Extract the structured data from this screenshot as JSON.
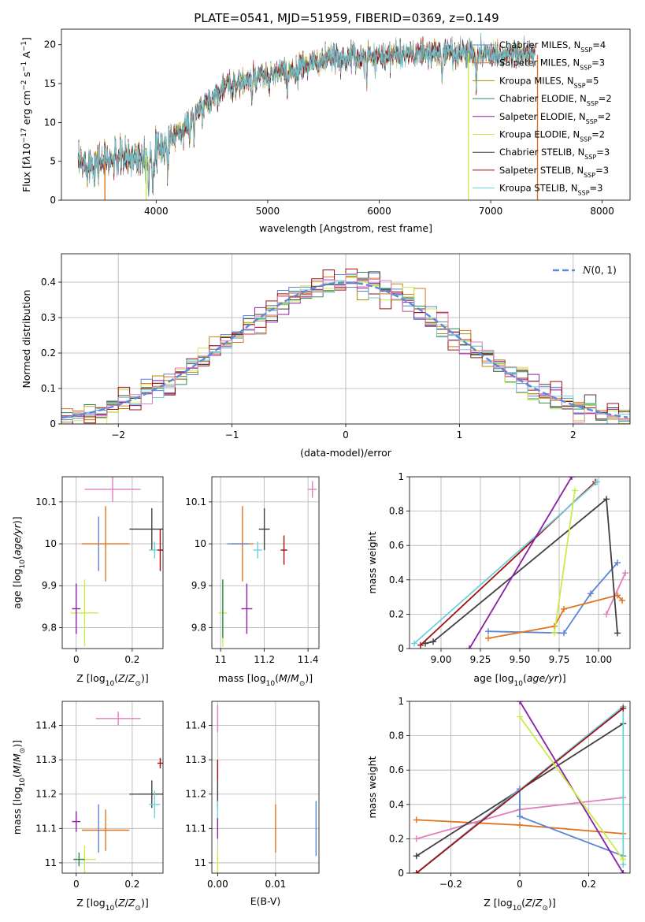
{
  "figure": {
    "title": "PLATE=0541, MJD=51959, FIBERID=0369, z=0.149"
  },
  "colors": {
    "chabrier_miles": "#5b84d4",
    "salpeter_miles": "#e07420",
    "kroupa_miles": "#b8860b",
    "chabrier_elodie": "#2e8b57",
    "salpeter_elodie": "#8b1fa6",
    "kroupa_elodie": "#c9ec4a",
    "chabrier_stelib": "#404040",
    "salpeter_stelib": "#a01010",
    "kroupa_stelib": "#6fd0dc",
    "pink": "#e27fbc"
  },
  "chart_data": [
    {
      "id": "spectrum",
      "type": "line",
      "xlabel": "wavelength [Angstrom, rest frame]",
      "ylabel": "Flux [fλ10⁻¹⁷ erg cm⁻² s⁻¹ A⁻¹]",
      "xlim": [
        3150,
        8250
      ],
      "ylim": [
        0,
        22
      ],
      "xticks": [
        4000,
        5000,
        6000,
        7000,
        8000
      ],
      "yticks": [
        0,
        5,
        10,
        15,
        20
      ],
      "spectrum_range": [
        3300,
        7400
      ],
      "legend_position": "top-right",
      "legend": [
        "Chabrier MILES, N_SSP=4",
        "Salpeter MILES, N_SSP=3",
        "Kroupa MILES, N_SSP=5",
        "Chabrier ELODIE, N_SSP=2",
        "Salpeter ELODIE, N_SSP=2",
        "Kroupa ELODIE, N_SSP=2",
        "Chabrier STELIB, N_SSP=3",
        "Salpeter STELIB, N_SSP=3",
        "Kroupa STELIB, N_SSP=3"
      ],
      "cutoffs": [
        {
          "series": "Salpeter MILES",
          "x": 3540
        },
        {
          "series": "Kroupa ELODIE",
          "x": 3910
        },
        {
          "series": "Kroupa ELODIE",
          "x": 6800
        },
        {
          "series": "Salpeter MILES",
          "x": 7420
        }
      ]
    },
    {
      "id": "residuals",
      "type": "histogram",
      "xlabel": "(data-model)/error",
      "ylabel": "Normed distribution",
      "xlim": [
        -2.5,
        2.5
      ],
      "ylim": [
        0,
        0.48
      ],
      "xticks": [
        -2,
        -1,
        0,
        1,
        2
      ],
      "yticks": [
        0.0,
        0.1,
        0.2,
        0.3,
        0.4
      ],
      "bin_width": 0.1,
      "gaussian_label": "N(0,1)",
      "legend_position": "top-right",
      "grid": true
    },
    {
      "id": "age_vs_Z",
      "type": "errorbar",
      "xlabel": "Z [log10(Z/Z⊙)]",
      "ylabel": "age  [log10(age/yr)]",
      "xlim": [
        -0.05,
        0.31
      ],
      "ylim": [
        9.75,
        10.16
      ],
      "xticks": [
        0.0,
        0.2
      ],
      "yticks": [
        9.8,
        9.9,
        10.0,
        10.1
      ],
      "points": [
        {
          "c": "pink",
          "x": 0.13,
          "xe": 0.1,
          "y": 10.13,
          "ye": 0.03
        },
        {
          "c": "chabrier_miles",
          "x": 0.08,
          "xe": 0.0,
          "y": 10.0,
          "ye": 0.065
        },
        {
          "c": "salpeter_miles",
          "x": 0.105,
          "xe": 0.085,
          "y": 10.0,
          "ye": 0.09
        },
        {
          "c": "chabrier_stelib",
          "x": 0.27,
          "xe": 0.08,
          "y": 10.035,
          "ye": 0.05
        },
        {
          "c": "kroupa_stelib",
          "x": 0.28,
          "xe": 0.02,
          "y": 9.985,
          "ye": 0.02
        },
        {
          "c": "salpeter_stelib",
          "x": 0.3,
          "xe": 0.01,
          "y": 9.985,
          "ye": 0.05
        },
        {
          "c": "kroupa_elodie",
          "x": 0.03,
          "xe": 0.05,
          "y": 9.835,
          "ye": 0.08
        },
        {
          "c": "salpeter_elodie",
          "x": 0.0,
          "xe": 0.015,
          "y": 9.845,
          "ye": 0.06
        }
      ]
    },
    {
      "id": "age_vs_mass",
      "type": "errorbar",
      "xlabel": "mass [log10(M/M⊙)]",
      "ylabel": "",
      "xlim": [
        10.96,
        11.45
      ],
      "ylim": [
        9.75,
        10.16
      ],
      "xticks": [
        11.0,
        11.2,
        11.4
      ],
      "yticks": [
        9.8,
        9.9,
        10.0,
        10.1
      ],
      "points": [
        {
          "c": "pink",
          "x": 11.42,
          "xe": 0.02,
          "y": 10.13,
          "ye": 0.02
        },
        {
          "c": "salpeter_miles",
          "x": 11.1,
          "xe": 0.05,
          "y": 10.0,
          "ye": 0.09
        },
        {
          "c": "chabrier_miles",
          "x": 11.08,
          "xe": 0.05,
          "y": 10.0,
          "ye": 0.0
        },
        {
          "c": "chabrier_stelib",
          "x": 11.2,
          "xe": 0.025,
          "y": 10.035,
          "ye": 0.05
        },
        {
          "c": "kroupa_stelib",
          "x": 11.17,
          "xe": 0.02,
          "y": 9.985,
          "ye": 0.02
        },
        {
          "c": "salpeter_stelib",
          "x": 11.29,
          "xe": 0.015,
          "y": 9.985,
          "ye": 0.035
        },
        {
          "c": "kroupa_elodie",
          "x": 11.01,
          "xe": 0.02,
          "y": 9.835,
          "ye": 0.08
        },
        {
          "c": "chabrier_elodie",
          "x": 11.01,
          "xe": 0.0,
          "y": 9.845,
          "ye": 0.07
        },
        {
          "c": "salpeter_elodie",
          "x": 11.12,
          "xe": 0.025,
          "y": 9.845,
          "ye": 0.06
        }
      ]
    },
    {
      "id": "massweight_vs_age",
      "type": "line",
      "xlabel": "age  [log10(age/yr)]",
      "ylabel": "mass weight",
      "xlim": [
        8.8,
        10.2
      ],
      "ylim": [
        0,
        1.0
      ],
      "xticks": [
        9.0,
        9.25,
        9.5,
        9.75,
        10.0
      ],
      "yticks": [
        0.0,
        0.2,
        0.4,
        0.6,
        0.8,
        1.0
      ],
      "tick_labels_x": [
        "9.00",
        "9.25",
        "9.50",
        "9.75",
        "10.00"
      ],
      "grid": true,
      "series": [
        {
          "c": "chabrier_miles",
          "x": [
            9.3,
            9.78,
            9.95,
            10.12
          ],
          "y": [
            0.1,
            0.09,
            0.32,
            0.5
          ]
        },
        {
          "c": "salpeter_miles",
          "x": [
            9.3,
            9.72,
            9.78,
            10.12,
            10.15
          ],
          "y": [
            0.06,
            0.13,
            0.23,
            0.31,
            0.28
          ]
        },
        {
          "c": "pink",
          "x": [
            10.05,
            10.17
          ],
          "y": [
            0.2,
            0.44
          ]
        },
        {
          "c": "chabrier_stelib",
          "x": [
            8.9,
            8.95,
            10.05,
            10.12
          ],
          "y": [
            0.03,
            0.04,
            0.87,
            0.09
          ]
        },
        {
          "c": "salpeter_stelib",
          "x": [
            8.87,
            9.98
          ],
          "y": [
            0.02,
            0.97
          ]
        },
        {
          "c": "kroupa_stelib",
          "x": [
            8.83,
            9.99
          ],
          "y": [
            0.03,
            0.97
          ]
        },
        {
          "c": "salpeter_elodie",
          "x": [
            9.18,
            9.83
          ],
          "y": [
            0.0,
            1.0
          ]
        },
        {
          "c": "kroupa_elodie",
          "x": [
            9.72,
            9.85
          ],
          "y": [
            0.09,
            0.92
          ]
        }
      ]
    },
    {
      "id": "mass_vs_Z",
      "type": "errorbar",
      "xlabel": "Z [log10(Z/Z⊙)]",
      "ylabel": "mass [log10(M/M⊙)]",
      "xlim": [
        -0.05,
        0.31
      ],
      "ylim": [
        10.97,
        11.47
      ],
      "xticks": [
        0.0,
        0.2
      ],
      "yticks": [
        11.0,
        11.1,
        11.2,
        11.3,
        11.4
      ],
      "points": [
        {
          "c": "pink",
          "x": 0.15,
          "xe": 0.08,
          "y": 11.42,
          "ye": 0.02
        },
        {
          "c": "chabrier_stelib",
          "x": 0.27,
          "xe": 0.08,
          "y": 11.2,
          "ye": 0.04
        },
        {
          "c": "salpeter_stelib",
          "x": 0.3,
          "xe": 0.01,
          "y": 11.29,
          "ye": 0.015
        },
        {
          "c": "kroupa_stelib",
          "x": 0.28,
          "xe": 0.02,
          "y": 11.17,
          "ye": 0.04
        },
        {
          "c": "salpeter_miles",
          "x": 0.105,
          "xe": 0.085,
          "y": 11.095,
          "ye": 0.06
        },
        {
          "c": "chabrier_miles",
          "x": 0.08,
          "xe": 0.0,
          "y": 11.1,
          "ye": 0.07
        },
        {
          "c": "salpeter_elodie",
          "x": 0.0,
          "xe": 0.015,
          "y": 11.12,
          "ye": 0.03
        },
        {
          "c": "kroupa_elodie",
          "x": 0.03,
          "xe": 0.04,
          "y": 11.01,
          "ye": 0.04
        },
        {
          "c": "chabrier_elodie",
          "x": 0.01,
          "xe": 0.02,
          "y": 11.01,
          "ye": 0.02
        }
      ]
    },
    {
      "id": "mass_vs_ebv",
      "type": "errorbar",
      "xlabel": "E(B-V)",
      "ylabel": "",
      "xlim": [
        -0.001,
        0.0175
      ],
      "ylim": [
        10.97,
        11.47
      ],
      "xticks": [
        0.0,
        0.01
      ],
      "yticks": [
        11.0,
        11.1,
        11.2,
        11.3,
        11.4
      ],
      "tick_labels_x": [
        "0.00",
        "0.01"
      ],
      "points": [
        {
          "c": "pink",
          "x": 0.0,
          "xe": 0.0,
          "y": 11.42,
          "ye": 0.04
        },
        {
          "c": "salpeter_stelib",
          "x": 0.0,
          "xe": 0.0,
          "y": 11.27,
          "ye": 0.03
        },
        {
          "c": "chabrier_stelib",
          "x": 0.0,
          "xe": 0.0,
          "y": 11.2,
          "ye": 0.04
        },
        {
          "c": "kroupa_stelib",
          "x": 0.0,
          "xe": 0.0,
          "y": 11.15,
          "ye": 0.03
        },
        {
          "c": "salpeter_elodie",
          "x": 0.0,
          "xe": 0.0,
          "y": 11.1,
          "ye": 0.03
        },
        {
          "c": "kroupa_elodie",
          "x": 0.0,
          "xe": 0.0,
          "y": 11.0,
          "ye": 0.04
        },
        {
          "c": "salpeter_miles",
          "x": 0.01,
          "xe": 0.0,
          "y": 11.1,
          "ye": 0.07
        },
        {
          "c": "chabrier_miles",
          "x": 0.017,
          "xe": 0.0,
          "y": 11.1,
          "ye": 0.08
        }
      ]
    },
    {
      "id": "massweight_vs_Z",
      "type": "line",
      "xlabel": "Z [log10(Z/Z⊙)]",
      "ylabel": "mass weight",
      "xlim": [
        -0.32,
        0.32
      ],
      "ylim": [
        0,
        1.0
      ],
      "xticks": [
        -0.2,
        0.0,
        0.2
      ],
      "yticks": [
        0.0,
        0.2,
        0.4,
        0.6,
        0.8,
        1.0
      ],
      "grid": true,
      "series": [
        {
          "c": "salpeter_miles",
          "x": [
            -0.3,
            0.0,
            0.3
          ],
          "y": [
            0.31,
            0.28,
            0.23
          ]
        },
        {
          "c": "pink",
          "x": [
            -0.3,
            0.0,
            0.3
          ],
          "y": [
            0.2,
            0.37,
            0.44
          ]
        },
        {
          "c": "chabrier_stelib",
          "x": [
            -0.3,
            0.3
          ],
          "y": [
            0.1,
            0.87
          ]
        },
        {
          "c": "chabrier_miles",
          "x": [
            -0.3,
            0.0,
            0.0,
            0.3
          ],
          "y": [
            0.0,
            0.49,
            0.33,
            0.1
          ]
        },
        {
          "c": "kroupa_stelib",
          "x": [
            -0.3,
            0.3,
            0.3
          ],
          "y": [
            0.0,
            0.97,
            0.05
          ]
        },
        {
          "c": "salpeter_stelib",
          "x": [
            -0.3,
            0.3
          ],
          "y": [
            0.0,
            0.96
          ]
        },
        {
          "c": "salpeter_elodie",
          "x": [
            0.0,
            0.3
          ],
          "y": [
            1.0,
            0.0
          ]
        },
        {
          "c": "kroupa_elodie",
          "x": [
            0.0,
            0.3
          ],
          "y": [
            0.91,
            0.08
          ]
        }
      ]
    }
  ]
}
